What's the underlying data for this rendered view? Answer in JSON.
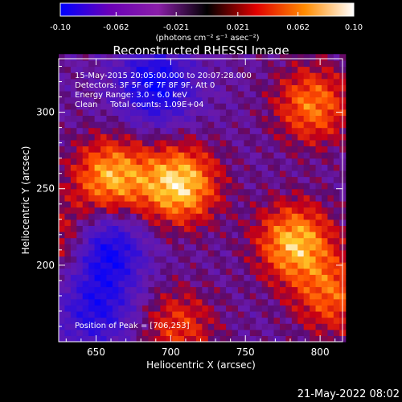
{
  "chart_data": {
    "type": "heatmap",
    "title": "Reconstructed RHESSI Image",
    "xlabel": "Heliocentric X (arcsec)",
    "ylabel": "Heliocentric Y (arcsec)",
    "xlim": [
      625,
      815
    ],
    "ylim": [
      150,
      335
    ],
    "x_ticks": [
      "650",
      "700",
      "750",
      "800"
    ],
    "y_ticks": [
      "200",
      "250",
      "300"
    ],
    "colorbar": {
      "range": [
        -0.1,
        0.1
      ],
      "ticks": [
        "-0.10",
        "-0.062",
        "-0.021",
        "0.021",
        "0.062",
        "0.10"
      ],
      "unit": "(photons cm⁻² s⁻¹ asec⁻²)",
      "colors": [
        "#0000ff",
        "#6a00b8",
        "#8a1fa8",
        "#000000",
        "#e00000",
        "#ff8c00",
        "#ffffff"
      ]
    },
    "annotations": [
      "15-May-2015 20:05:00.000 to 20:07:28.000",
      "Detectors: 3F 5F 6F 7F 8F 9F, Att 0",
      "Energy Range: 3.0 - 6.0 keV",
      "Clean     Total counts: 1.09E+04",
      "Position of Peak = [706,253]"
    ],
    "sources": [
      {
        "x": 660,
        "y": 258,
        "intensity": 0.085
      },
      {
        "x": 706,
        "y": 253,
        "intensity": 0.1
      },
      {
        "x": 783,
        "y": 215,
        "intensity": 0.09
      },
      {
        "x": 795,
        "y": 305,
        "intensity": 0.07
      },
      {
        "x": 808,
        "y": 180,
        "intensity": 0.06
      },
      {
        "x": 632,
        "y": 215,
        "intensity": 0.055
      },
      {
        "x": 705,
        "y": 160,
        "intensity": 0.05
      }
    ],
    "negative_regions": [
      {
        "x": 655,
        "y": 210,
        "intensity": -0.09
      },
      {
        "x": 690,
        "y": 318,
        "intensity": -0.08
      },
      {
        "x": 650,
        "y": 170,
        "intensity": -0.06
      }
    ]
  },
  "footer": {
    "date": "21-May-2022 08:02"
  }
}
